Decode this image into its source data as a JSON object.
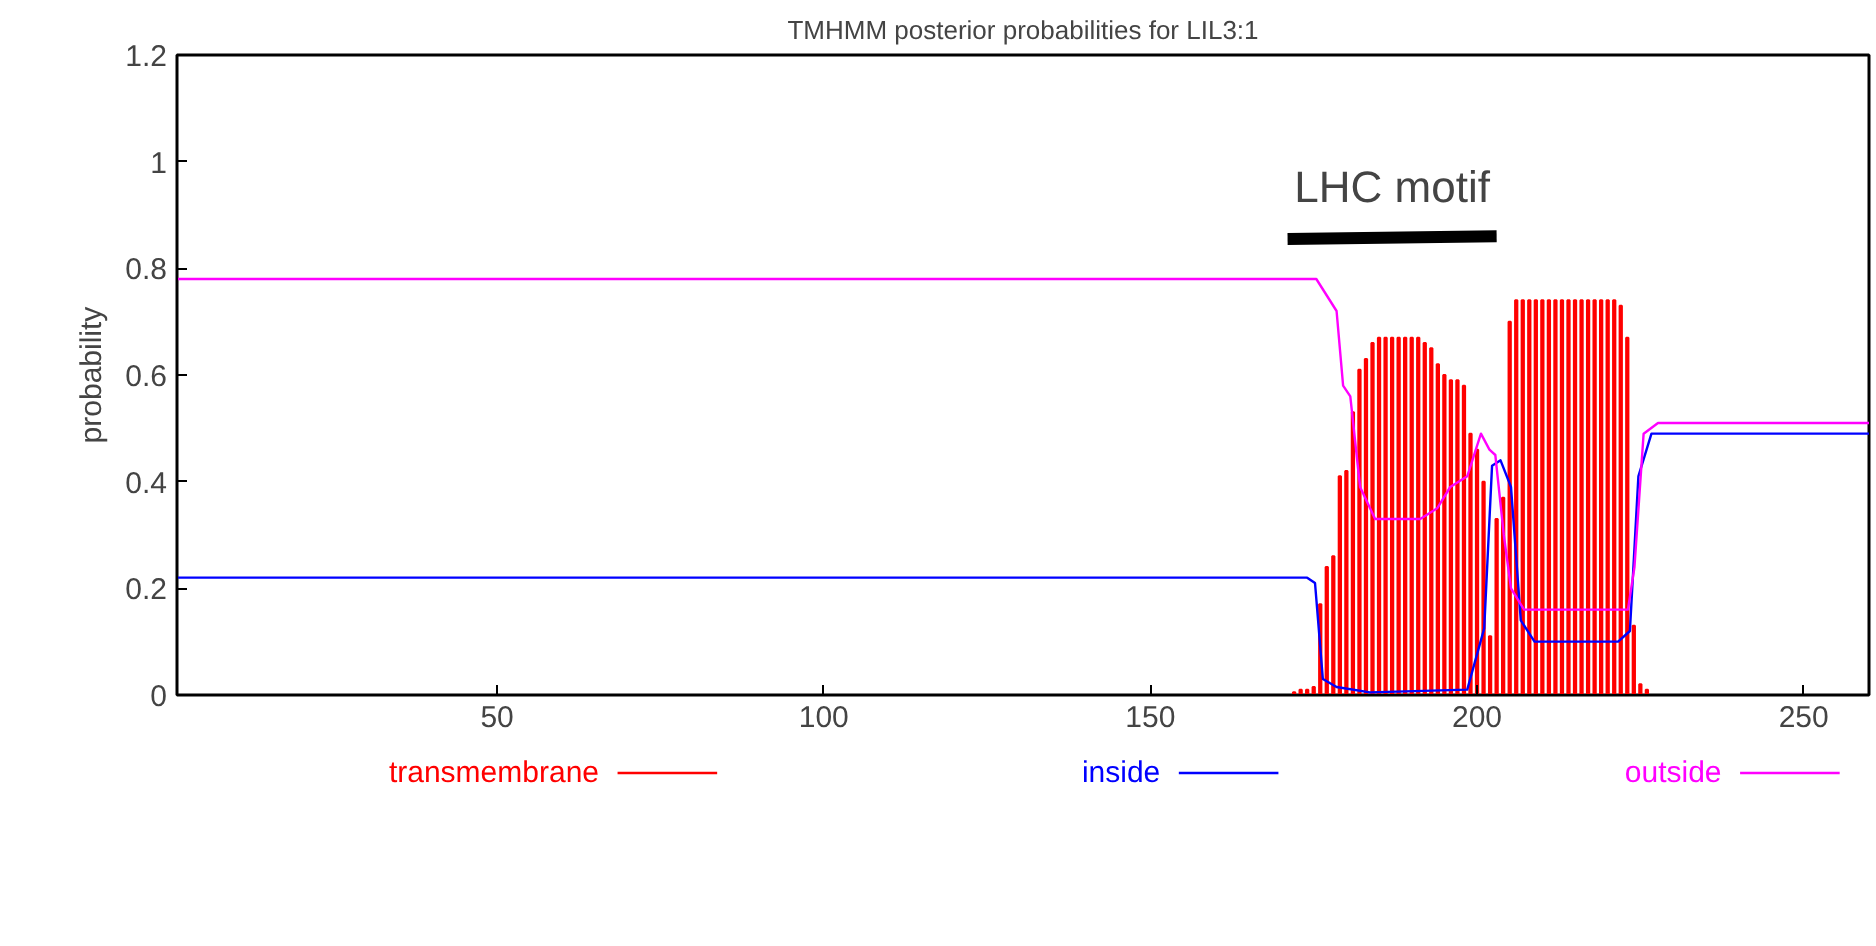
{
  "chart_data": {
    "type": "line",
    "title": "TMHMM posterior probabilities for LIL3:1",
    "ylabel": "probability",
    "xlim": [
      1,
      260
    ],
    "ylim": [
      0,
      1.2
    ],
    "xticks": [
      50,
      100,
      150,
      200,
      250
    ],
    "yticks": [
      0,
      0.2,
      0.4,
      0.6,
      0.8,
      1,
      1.2
    ],
    "grid": false,
    "legend": "bottom",
    "marker": "none",
    "line_style": "solid",
    "annotations": [
      "LHC motif"
    ],
    "series": [
      {
        "name": "transmembrane",
        "type": "bar",
        "color": "#ff0000",
        "x": [
          172,
          173,
          174,
          175,
          176,
          177,
          178,
          179,
          180,
          181,
          182,
          183,
          184,
          185,
          186,
          187,
          188,
          189,
          190,
          191,
          192,
          193,
          194,
          195,
          196,
          197,
          198,
          199,
          200,
          201,
          202,
          203,
          204,
          205,
          206,
          207,
          208,
          209,
          210,
          211,
          212,
          213,
          214,
          215,
          216,
          217,
          218,
          219,
          220,
          221,
          222,
          223,
          224,
          225,
          226
        ],
        "values": [
          0.005,
          0.01,
          0.01,
          0.015,
          0.17,
          0.24,
          0.26,
          0.41,
          0.42,
          0.53,
          0.61,
          0.63,
          0.66,
          0.67,
          0.67,
          0.67,
          0.67,
          0.67,
          0.67,
          0.67,
          0.66,
          0.65,
          0.62,
          0.6,
          0.59,
          0.59,
          0.58,
          0.49,
          0.46,
          0.4,
          0.11,
          0.33,
          0.37,
          0.7,
          0.74,
          0.74,
          0.74,
          0.74,
          0.74,
          0.74,
          0.74,
          0.74,
          0.74,
          0.74,
          0.74,
          0.74,
          0.74,
          0.74,
          0.74,
          0.74,
          0.73,
          0.67,
          0.13,
          0.02,
          0.01
        ]
      },
      {
        "name": "inside",
        "color": "#0000ff",
        "x": [
          1,
          174,
          175.2,
          176.4,
          178.5,
          183.6,
          198.5,
          201.1,
          202.3,
          203.6,
          205.2,
          206.7,
          208.8,
          221.6,
          223.4,
          224.7,
          226.7,
          260
        ],
        "values": [
          0.22,
          0.22,
          0.21,
          0.03,
          0.015,
          0.005,
          0.01,
          0.125,
          0.43,
          0.44,
          0.39,
          0.14,
          0.1,
          0.1,
          0.12,
          0.41,
          0.49,
          0.49
        ]
      },
      {
        "name": "outside",
        "color": "#ff00ff",
        "x": [
          1,
          175.4,
          178.5,
          179.5,
          180.6,
          182.1,
          184.4,
          191.3,
          193.9,
          195.9,
          198.5,
          200.6,
          201.9,
          202.8,
          204.1,
          205.2,
          207.2,
          223.1,
          224.1,
          225.5,
          227.7,
          260
        ],
        "values": [
          0.78,
          0.78,
          0.72,
          0.58,
          0.56,
          0.39,
          0.33,
          0.33,
          0.35,
          0.39,
          0.41,
          0.49,
          0.46,
          0.45,
          0.3,
          0.2,
          0.16,
          0.16,
          0.24,
          0.49,
          0.51,
          0.51
        ]
      },
      {
        "color": "#000000",
        "x": [
          171,
          203
        ],
        "values": [
          0.855,
          0.86
        ]
      }
    ]
  }
}
